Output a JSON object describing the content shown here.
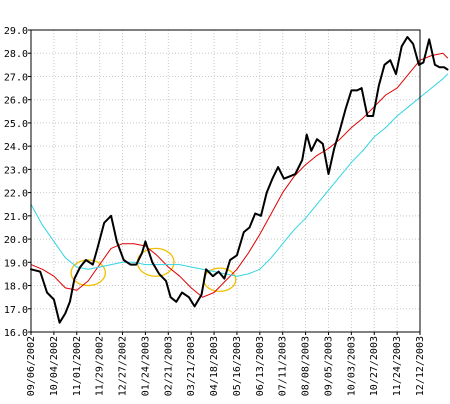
{
  "chart_data": {
    "type": "line",
    "ylim": [
      16.0,
      29.0
    ],
    "yticks": [
      "16.0",
      "17.0",
      "18.0",
      "19.0",
      "20.0",
      "21.0",
      "22.0",
      "23.0",
      "24.0",
      "25.0",
      "26.0",
      "27.0",
      "28.0",
      "29.0"
    ],
    "xticks": [
      "09/06/2002",
      "10/04/2002",
      "11/01/2002",
      "11/29/2002",
      "12/27/2002",
      "01/24/2003",
      "02/21/2003",
      "03/21/2003",
      "04/18/2003",
      "05/16/2003",
      "06/13/2003",
      "07/11/2003",
      "08/08/2003",
      "09/05/2003",
      "10/03/2003",
      "10/27/2003",
      "11/24/2003",
      "12/12/2003"
    ],
    "grid": true,
    "series": [
      {
        "color": "#000000",
        "width": 2,
        "values": [
          [
            0,
            18.7
          ],
          [
            0.4,
            18.6
          ],
          [
            0.7,
            17.7
          ],
          [
            1.0,
            17.4
          ],
          [
            1.25,
            16.4
          ],
          [
            1.5,
            16.8
          ],
          [
            1.7,
            17.3
          ],
          [
            1.9,
            18.3
          ],
          [
            2.15,
            18.8
          ],
          [
            2.4,
            19.1
          ],
          [
            2.7,
            18.9
          ],
          [
            2.9,
            19.6
          ],
          [
            3.2,
            20.7
          ],
          [
            3.5,
            21.0
          ],
          [
            3.75,
            19.9
          ],
          [
            4.05,
            19.1
          ],
          [
            4.35,
            18.9
          ],
          [
            4.6,
            18.9
          ],
          [
            4.85,
            19.4
          ],
          [
            5.0,
            19.9
          ],
          [
            5.3,
            19.0
          ],
          [
            5.6,
            18.5
          ],
          [
            5.9,
            18.2
          ],
          [
            6.1,
            17.5
          ],
          [
            6.35,
            17.3
          ],
          [
            6.6,
            17.7
          ],
          [
            6.9,
            17.5
          ],
          [
            7.15,
            17.1
          ],
          [
            7.45,
            17.6
          ],
          [
            7.65,
            18.7
          ],
          [
            7.95,
            18.4
          ],
          [
            8.2,
            18.6
          ],
          [
            8.45,
            18.3
          ],
          [
            8.7,
            19.1
          ],
          [
            9.0,
            19.3
          ],
          [
            9.3,
            20.3
          ],
          [
            9.55,
            20.5
          ],
          [
            9.8,
            21.1
          ],
          [
            10.05,
            21.0
          ],
          [
            10.3,
            22.0
          ],
          [
            10.55,
            22.6
          ],
          [
            10.8,
            23.1
          ],
          [
            11.05,
            22.6
          ],
          [
            11.3,
            22.7
          ],
          [
            11.55,
            22.8
          ],
          [
            11.85,
            23.4
          ],
          [
            12.05,
            24.5
          ],
          [
            12.25,
            23.8
          ],
          [
            12.5,
            24.3
          ],
          [
            12.75,
            24.1
          ],
          [
            13.0,
            22.8
          ],
          [
            13.25,
            23.9
          ],
          [
            13.5,
            24.7
          ],
          [
            13.75,
            25.6
          ],
          [
            14.0,
            26.4
          ],
          [
            14.25,
            26.4
          ],
          [
            14.45,
            26.5
          ],
          [
            14.7,
            25.3
          ],
          [
            14.95,
            25.3
          ],
          [
            15.2,
            26.6
          ],
          [
            15.45,
            27.5
          ],
          [
            15.7,
            27.7
          ],
          [
            15.95,
            27.1
          ],
          [
            16.2,
            28.3
          ],
          [
            16.45,
            28.7
          ],
          [
            16.7,
            28.4
          ],
          [
            16.95,
            27.5
          ],
          [
            17.15,
            27.6
          ],
          [
            17.4,
            28.6
          ],
          [
            17.65,
            27.5
          ],
          [
            17.85,
            27.4
          ],
          [
            18.05,
            27.4
          ],
          [
            18.2,
            27.3
          ]
        ]
      },
      {
        "color": "#e00000",
        "width": 1,
        "values": [
          [
            0,
            18.9
          ],
          [
            0.5,
            18.7
          ],
          [
            1.0,
            18.4
          ],
          [
            1.5,
            17.9
          ],
          [
            2.0,
            17.8
          ],
          [
            2.5,
            18.2
          ],
          [
            3.0,
            18.9
          ],
          [
            3.5,
            19.6
          ],
          [
            4.0,
            19.8
          ],
          [
            4.5,
            19.8
          ],
          [
            5.0,
            19.7
          ],
          [
            5.5,
            19.3
          ],
          [
            6.0,
            18.8
          ],
          [
            6.5,
            18.4
          ],
          [
            7.0,
            17.9
          ],
          [
            7.5,
            17.5
          ],
          [
            8.0,
            17.7
          ],
          [
            8.5,
            18.2
          ],
          [
            9.0,
            18.7
          ],
          [
            9.5,
            19.4
          ],
          [
            10.0,
            20.2
          ],
          [
            10.5,
            21.1
          ],
          [
            11.0,
            22.0
          ],
          [
            11.5,
            22.7
          ],
          [
            12.0,
            23.2
          ],
          [
            12.5,
            23.6
          ],
          [
            13.0,
            23.9
          ],
          [
            13.5,
            24.3
          ],
          [
            14.0,
            24.8
          ],
          [
            14.5,
            25.2
          ],
          [
            15.0,
            25.7
          ],
          [
            15.5,
            26.2
          ],
          [
            16.0,
            26.5
          ],
          [
            16.5,
            27.1
          ],
          [
            17.0,
            27.7
          ],
          [
            17.5,
            27.9
          ],
          [
            18.0,
            28.0
          ],
          [
            18.2,
            27.8
          ]
        ]
      },
      {
        "color": "#33d4e4",
        "width": 1,
        "values": [
          [
            0,
            21.5
          ],
          [
            0.5,
            20.6
          ],
          [
            1.0,
            19.9
          ],
          [
            1.5,
            19.2
          ],
          [
            2.0,
            18.8
          ],
          [
            2.5,
            18.7
          ],
          [
            3.0,
            18.8
          ],
          [
            3.5,
            18.9
          ],
          [
            4.0,
            19.0
          ],
          [
            4.5,
            19.0
          ],
          [
            5.0,
            18.9
          ],
          [
            5.5,
            18.9
          ],
          [
            6.0,
            18.9
          ],
          [
            6.5,
            18.9
          ],
          [
            7.0,
            18.8
          ],
          [
            7.5,
            18.7
          ],
          [
            8.0,
            18.6
          ],
          [
            8.5,
            18.5
          ],
          [
            9.0,
            18.4
          ],
          [
            9.5,
            18.5
          ],
          [
            10.0,
            18.7
          ],
          [
            10.5,
            19.2
          ],
          [
            11.0,
            19.8
          ],
          [
            11.5,
            20.4
          ],
          [
            12.0,
            20.9
          ],
          [
            12.5,
            21.5
          ],
          [
            13.0,
            22.1
          ],
          [
            13.5,
            22.7
          ],
          [
            14.0,
            23.3
          ],
          [
            14.5,
            23.8
          ],
          [
            15.0,
            24.4
          ],
          [
            15.5,
            24.8
          ],
          [
            16.0,
            25.3
          ],
          [
            16.5,
            25.7
          ],
          [
            17.0,
            26.1
          ],
          [
            17.5,
            26.5
          ],
          [
            18.0,
            26.9
          ],
          [
            18.2,
            27.1
          ]
        ]
      }
    ],
    "highlights": [
      {
        "x": 2.5,
        "y": 18.55,
        "rx": 0.75,
        "ry": 0.55,
        "color": "#f0c000"
      },
      {
        "x": 5.45,
        "y": 19.0,
        "rx": 0.8,
        "ry": 0.6,
        "color": "#f0c000"
      },
      {
        "x": 8.25,
        "y": 18.25,
        "rx": 0.7,
        "ry": 0.5,
        "color": "#f0c000"
      }
    ]
  }
}
